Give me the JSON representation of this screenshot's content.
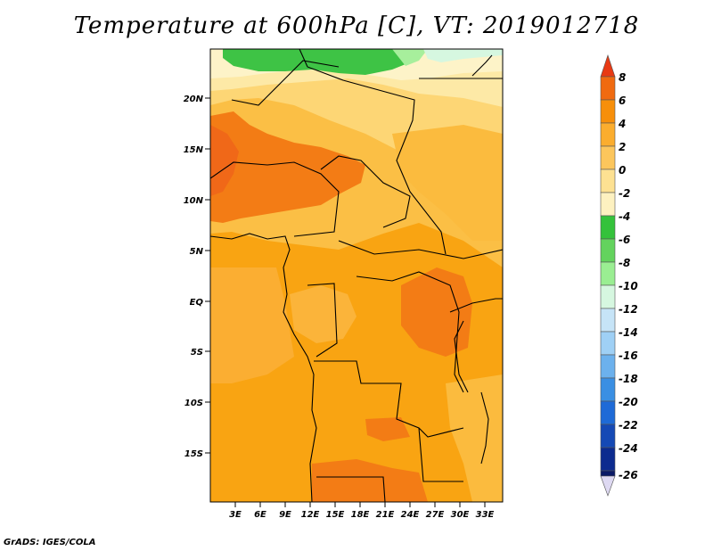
{
  "title": "Temperature at 600hPa [C], VT: 2019012718",
  "credit": "GrADS: IGES/COLA",
  "map": {
    "lat_labels": [
      "20N",
      "15N",
      "10N",
      "5N",
      "EQ",
      "5S",
      "10S",
      "15S"
    ],
    "lon_labels": [
      "3E",
      "6E",
      "9E",
      "12E",
      "15E",
      "18E",
      "21E",
      "24E",
      "27E",
      "30E",
      "33E"
    ]
  },
  "colorbar": {
    "labels": [
      "8",
      "6",
      "4",
      "2",
      "0",
      "-2",
      "-4",
      "-6",
      "-8",
      "-10",
      "-12",
      "-14",
      "-16",
      "-18",
      "-20",
      "-22",
      "-24",
      "-26"
    ],
    "colors": [
      "#e83a14",
      "#f06a10",
      "#f78f0a",
      "#fbad2e",
      "#fcc65c",
      "#fde192",
      "#fdf1c0",
      "#34c23b",
      "#63d35d",
      "#9aee92",
      "#d6f7e0",
      "#c6e4f7",
      "#9fd0f5",
      "#6cb1ed",
      "#3a8fe3",
      "#1e6ad7",
      "#1549b5",
      "#0c2b8f",
      "#0a1966",
      "#ded9f2"
    ]
  },
  "chart_data": {
    "type": "heatmap",
    "title": "Temperature at 600hPa [C], VT: 2019012718",
    "variable": "Temperature",
    "level": "600hPa",
    "units": "C",
    "valid_time": "2019012718",
    "lon_range": [
      0,
      35
    ],
    "lat_range": [
      -20,
      25
    ],
    "x_ticks": [
      "3E",
      "6E",
      "9E",
      "12E",
      "15E",
      "18E",
      "21E",
      "24E",
      "27E",
      "30E",
      "33E"
    ],
    "y_ticks": [
      "20N",
      "15N",
      "10N",
      "5N",
      "EQ",
      "5S",
      "10S",
      "15S"
    ],
    "contour_levels": [
      8,
      6,
      4,
      2,
      0,
      -2,
      -4,
      -6,
      -8,
      -10,
      -12,
      -14,
      -16,
      -18,
      -20,
      -22,
      -24,
      -26
    ]
  }
}
